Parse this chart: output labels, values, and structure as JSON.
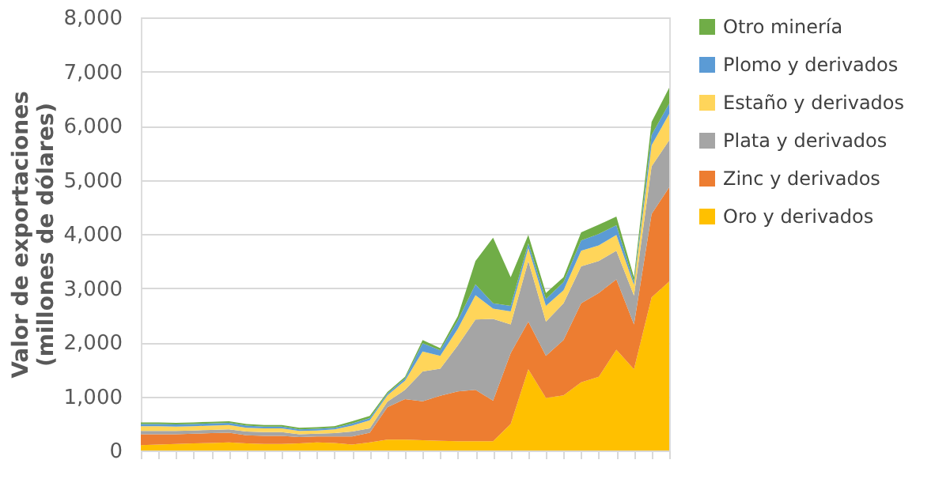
{
  "chart_data": {
    "type": "area",
    "stacked": true,
    "ylabel": "Valor de exportaciones\n(millones de dólares)",
    "categories": [
      null,
      null,
      null,
      null,
      null,
      null,
      null,
      null,
      null,
      null,
      null,
      null,
      null,
      null,
      null,
      null,
      null,
      null,
      null,
      null,
      null,
      null,
      null,
      null,
      null,
      null,
      null,
      null,
      null,
      null,
      null
    ],
    "series": [
      {
        "name": "Oro y derivados",
        "color": "#ffc000",
        "values": [
          100,
          110,
          120,
          130,
          140,
          150,
          130,
          120,
          120,
          130,
          150,
          140,
          110,
          150,
          200,
          200,
          190,
          180,
          170,
          170,
          170,
          490,
          1500,
          970,
          1020,
          1260,
          1360,
          1860,
          1500,
          2830,
          3120
        ]
      },
      {
        "name": "Zinc y derivados",
        "color": "#ed7d31",
        "values": [
          200,
          190,
          180,
          180,
          180,
          180,
          150,
          150,
          150,
          120,
          110,
          120,
          150,
          180,
          600,
          750,
          720,
          830,
          920,
          950,
          750,
          1310,
          880,
          780,
          1020,
          1460,
          1550,
          1300,
          830,
          1540,
          1740
        ]
      },
      {
        "name": "Plata y derivados",
        "color": "#a5a5a5",
        "values": [
          60,
          60,
          60,
          60,
          60,
          60,
          70,
          70,
          70,
          50,
          50,
          60,
          90,
          80,
          100,
          170,
          550,
          500,
          850,
          1300,
          1510,
          530,
          1120,
          630,
          680,
          680,
          590,
          530,
          530,
          880,
          870
        ]
      },
      {
        "name": "Estaño y derivados",
        "color": "#ffd55a",
        "values": [
          90,
          90,
          80,
          80,
          80,
          80,
          70,
          70,
          70,
          60,
          60,
          70,
          110,
          150,
          120,
          170,
          370,
          240,
          310,
          450,
          190,
          240,
          240,
          290,
          240,
          290,
          290,
          290,
          200,
          390,
          490
        ]
      },
      {
        "name": "Plomo y derivados",
        "color": "#5b9bd5",
        "values": [
          40,
          40,
          40,
          40,
          40,
          40,
          40,
          30,
          30,
          30,
          30,
          30,
          40,
          40,
          30,
          40,
          150,
          100,
          150,
          200,
          100,
          100,
          90,
          130,
          150,
          190,
          210,
          180,
          50,
          190,
          190
        ]
      },
      {
        "name": "Otro minería",
        "color": "#70ad47",
        "values": [
          30,
          30,
          30,
          30,
          30,
          30,
          30,
          30,
          30,
          30,
          30,
          30,
          40,
          40,
          30,
          30,
          60,
          40,
          80,
          430,
          1210,
          530,
          150,
          110,
          90,
          150,
          170,
          160,
          90,
          240,
          290
        ]
      }
    ],
    "ylim": [
      0,
      8000
    ],
    "yticks": [
      0,
      {
        "value": 1000,
        "label": "1,000"
      },
      {
        "value": 2000,
        "label": "2,000"
      },
      {
        "value": 3000,
        "label": "3,000"
      },
      {
        "value": 4000,
        "label": "4,000"
      },
      {
        "value": 5000,
        "label": "5,000"
      },
      {
        "value": 6000,
        "label": "6,000"
      },
      {
        "value": 7000,
        "label": "7,000"
      },
      {
        "value": 8000,
        "label": "8,000"
      }
    ],
    "grid": "y",
    "legend": "right"
  }
}
